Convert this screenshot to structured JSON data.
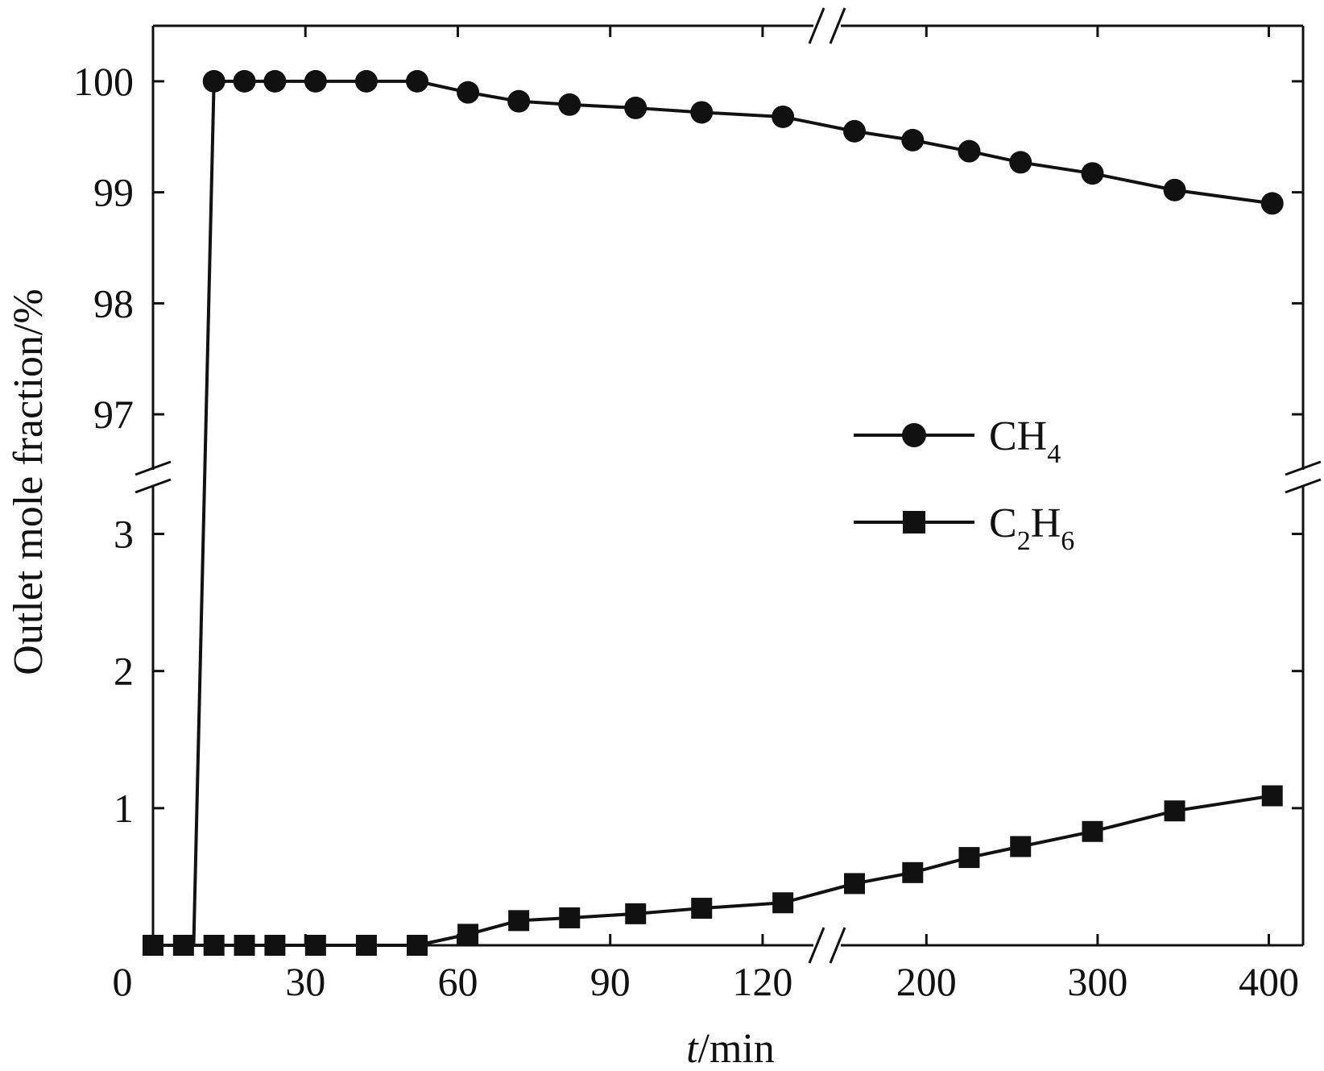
{
  "chart_data": {
    "type": "line",
    "title": "",
    "xlabel": {
      "italic": "t",
      "rest": "/min"
    },
    "ylabel": "Outlet mole fraction/%",
    "x_broken": true,
    "y_broken": true,
    "x_segments": [
      {
        "range": [
          0,
          130
        ],
        "ticks": [
          0,
          30,
          60,
          90,
          120
        ]
      },
      {
        "range": [
          150,
          420
        ],
        "ticks": [
          200,
          300,
          400
        ]
      }
    ],
    "y_segments": [
      {
        "range": [
          0,
          3.35
        ],
        "ticks": [
          1,
          2,
          3
        ]
      },
      {
        "range": [
          96.5,
          100.5
        ],
        "ticks": [
          97,
          98,
          99,
          100
        ]
      }
    ],
    "grid": false,
    "legend_position": "right-center",
    "series": [
      {
        "name": {
          "base": "CH",
          "sub": "4",
          "suffix": ""
        },
        "marker": "circle",
        "color": "#111111",
        "x": [
          2,
          8,
          12,
          18,
          24,
          32,
          42,
          52,
          62,
          72,
          82,
          95,
          108,
          124,
          158,
          192,
          225,
          255,
          297,
          345,
          402
        ],
        "y": [
          0,
          0,
          100,
          100,
          100,
          100,
          100,
          100,
          99.9,
          99.82,
          99.79,
          99.76,
          99.72,
          99.68,
          99.55,
          99.47,
          99.37,
          99.27,
          99.17,
          99.02,
          98.9
        ]
      },
      {
        "name": {
          "base": "C",
          "sub": "2",
          "suffix": "H",
          "sub2": "6"
        },
        "marker": "square",
        "color": "#111111",
        "x": [
          0,
          6,
          12,
          18,
          24,
          32,
          42,
          52,
          62,
          72,
          82,
          95,
          108,
          124,
          158,
          192,
          225,
          255,
          297,
          345,
          402
        ],
        "y": [
          0,
          0,
          0,
          0,
          0,
          0,
          0,
          0,
          0.08,
          0.18,
          0.2,
          0.23,
          0.27,
          0.31,
          0.45,
          0.53,
          0.64,
          0.72,
          0.83,
          0.98,
          1.09
        ]
      }
    ]
  }
}
